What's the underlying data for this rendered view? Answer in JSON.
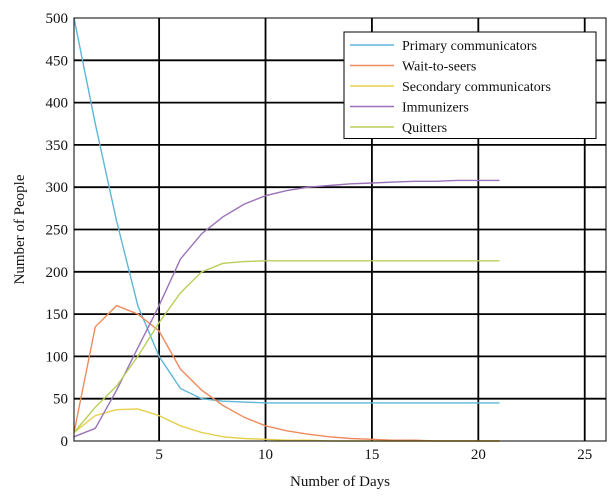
{
  "chart_data": {
    "type": "line",
    "title": "",
    "xlabel": "Number of Days",
    "ylabel": "Number of People",
    "xlim": [
      1,
      26
    ],
    "ylim": [
      0,
      500
    ],
    "xticks": [
      5,
      10,
      15,
      20,
      25
    ],
    "yticks": [
      0,
      50,
      100,
      150,
      200,
      250,
      300,
      350,
      400,
      450,
      500
    ],
    "grid": true,
    "legend_position": "top-right",
    "x": [
      1,
      2,
      3,
      4,
      5,
      6,
      7,
      8,
      9,
      10,
      11,
      12,
      13,
      14,
      15,
      16,
      17,
      18,
      19,
      20,
      21
    ],
    "series": [
      {
        "name": "Primary communicators",
        "color": "#5fb7d6",
        "values": [
          500,
          375,
          260,
          160,
          100,
          62,
          50,
          47,
          46,
          45,
          45,
          45,
          45,
          45,
          45,
          45,
          45,
          45,
          45,
          45,
          45
        ]
      },
      {
        "name": "Wait-to-seers",
        "color": "#f08a5d",
        "values": [
          10,
          135,
          160,
          150,
          130,
          85,
          60,
          42,
          28,
          18,
          12,
          8,
          5,
          3,
          2,
          1,
          1,
          0,
          0,
          0,
          0
        ]
      },
      {
        "name": "Secondary communicators",
        "color": "#e6cf4a",
        "values": [
          10,
          30,
          37,
          38,
          30,
          18,
          10,
          5,
          3,
          2,
          1,
          1,
          0,
          0,
          0,
          0,
          0,
          0,
          0,
          0,
          0
        ]
      },
      {
        "name": "Immunizers",
        "color": "#9a72b8",
        "values": [
          5,
          15,
          60,
          110,
          160,
          215,
          245,
          265,
          280,
          290,
          296,
          300,
          302,
          304,
          305,
          306,
          307,
          307,
          308,
          308,
          308
        ]
      },
      {
        "name": "Quitters",
        "color": "#b8cf5a",
        "values": [
          10,
          40,
          65,
          100,
          140,
          175,
          200,
          210,
          212,
          213,
          213,
          213,
          213,
          213,
          213,
          213,
          213,
          213,
          213,
          213,
          213
        ]
      }
    ]
  }
}
